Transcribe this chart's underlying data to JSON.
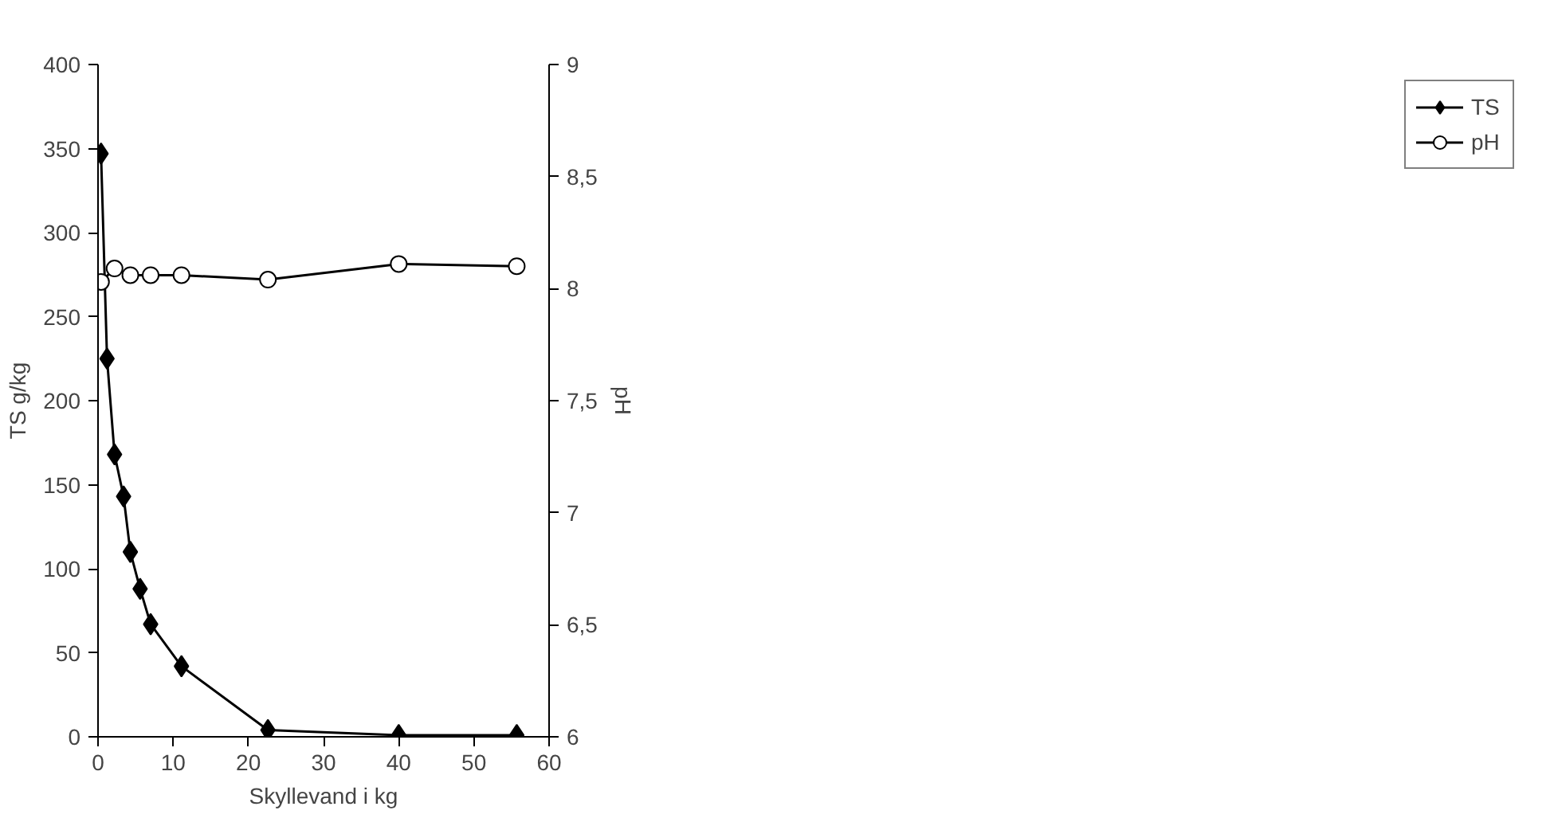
{
  "chart_data": {
    "type": "line",
    "xlabel": "Skyllevand i kg",
    "ylabel": "TS g/kg",
    "y2label": "pH",
    "xlim": [
      0,
      60
    ],
    "xticks": [
      0,
      10,
      20,
      30,
      40,
      50,
      60
    ],
    "ylim": [
      0,
      400
    ],
    "yticks": [
      0,
      50,
      100,
      150,
      200,
      250,
      300,
      350,
      400
    ],
    "y2lim": [
      6,
      9
    ],
    "y2ticks": [
      6,
      {
        "value": 6.5,
        "label": "6,5"
      },
      7,
      {
        "value": 7.5,
        "label": "7,5"
      },
      8,
      {
        "value": 8.5,
        "label": "8,5"
      },
      9
    ],
    "grid": false,
    "legend": "right",
    "series": [
      {
        "name": "TS",
        "color": "#000000",
        "marker": "diamond",
        "x": [
          0.4,
          1.2,
          2.2,
          3.4,
          4.3,
          5.6,
          7.0,
          11.1,
          22.6,
          40,
          55.7
        ],
        "values": [
          347,
          225,
          168,
          143,
          110,
          88,
          67,
          42,
          4,
          1,
          1
        ]
      },
      {
        "name": "pH",
        "color": "#000000",
        "marker": "circle",
        "axis": "y2",
        "x": [
          0.4,
          2.2,
          4.3,
          7.0,
          11.1,
          22.6,
          40,
          55.7
        ],
        "values": [
          8.03,
          8.09,
          8.06,
          8.06,
          8.06,
          8.04,
          8.11,
          8.1
        ]
      }
    ]
  }
}
